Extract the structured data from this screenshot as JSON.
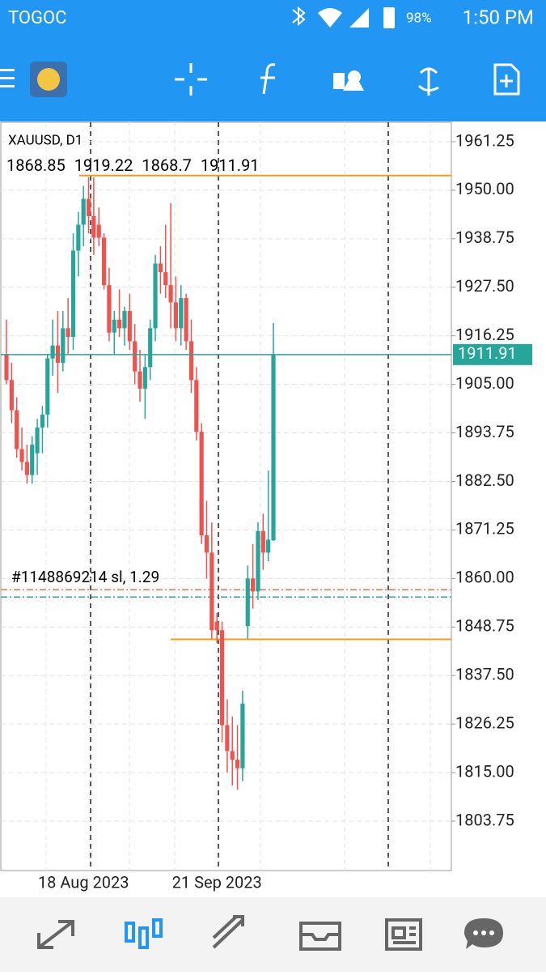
{
  "status_bar": {
    "carrier": "TOGOC",
    "battery": "98%",
    "time": "1:50 PM"
  },
  "chart_data": {
    "type": "candlestick",
    "title": "XAUUSD, D1",
    "categories": [
      null,
      null,
      null,
      null,
      null,
      null,
      null,
      null,
      null,
      null,
      null,
      null,
      null,
      null,
      null,
      "18 Aug 2023",
      null,
      null,
      null,
      null,
      null,
      null,
      null,
      null,
      null,
      null,
      null,
      null,
      null,
      null,
      null,
      null,
      null,
      null,
      null,
      null,
      null,
      null,
      null,
      null,
      null,
      "21 Sep 2023",
      null,
      null,
      null,
      null,
      null,
      null,
      null,
      null,
      null,
      null,
      null
    ],
    "open": [
      1912,
      1906,
      1899,
      1890,
      1887,
      1884,
      1889,
      1895,
      1898,
      1911,
      1914,
      1910,
      1918,
      1916,
      1936,
      1942,
      1948,
      1944,
      1942,
      1939,
      1928,
      1917,
      1920,
      1918,
      1922,
      1915,
      1908,
      1904,
      1909,
      1918,
      1933,
      1931,
      1928,
      1924,
      1918,
      1925,
      1915,
      1906,
      1894,
      1870,
      1866,
      1850,
      1848,
      1826,
      1820,
      1818,
      1816,
      1849,
      1860,
      1857,
      1871,
      1866,
      1868.85
    ],
    "high": [
      1920,
      1910,
      1902,
      1895,
      1891,
      1893,
      1897,
      1900,
      1912,
      1920,
      1922,
      1922,
      1925,
      1940,
      1945,
      1951,
      1953,
      1953,
      1946,
      1940,
      1932,
      1922,
      1927,
      1923,
      1926,
      1919,
      1913,
      1912,
      1920,
      1935,
      1937,
      1942,
      1947,
      1930,
      1928,
      1926,
      1920,
      1909,
      1896,
      1878,
      1873,
      1852,
      1850,
      1832,
      1828,
      1826,
      1834,
      1863,
      1868,
      1873,
      1875,
      1885,
      1919.22
    ],
    "low": [
      1905,
      1896,
      1888,
      1885,
      1882,
      1882,
      1884,
      1889,
      1895,
      1907,
      1903,
      1908,
      1912,
      1913,
      1930,
      1937,
      1940,
      1935,
      1937,
      1927,
      1915,
      1912,
      1916,
      1914,
      1913,
      1905,
      1901,
      1897,
      1906,
      1915,
      1926,
      1925,
      1918,
      1915,
      1914,
      1913,
      1903,
      1892,
      1868,
      1860,
      1846,
      1845,
      1822,
      1815,
      1812,
      1811,
      1813,
      1846,
      1853,
      1855,
      1862,
      1864,
      1868.7
    ],
    "close": [
      1906,
      1899,
      1890,
      1887,
      1884,
      1891,
      1895,
      1898,
      1911,
      1914,
      1910,
      1918,
      1916,
      1936,
      1942,
      1948,
      1944,
      1939,
      1939,
      1928,
      1917,
      1920,
      1918,
      1922,
      1915,
      1908,
      1904,
      1909,
      1918,
      1933,
      1931,
      1928,
      1924,
      1918,
      1925,
      1915,
      1906,
      1894,
      1870,
      1866,
      1848,
      1848,
      1826,
      1820,
      1818,
      1816,
      1831,
      1860,
      1857,
      1871,
      1866,
      1869,
      1911.91
    ],
    "up_color": "#26a69a",
    "down_color": "#ef5350",
    "ylim": [
      1792.3,
      1965.75
    ],
    "yticks": [
      1961.25,
      {
        "value": 1950,
        "label": "1950.00"
      },
      1938.75,
      {
        "value": 1927.5,
        "label": "1927.50"
      },
      1916.25,
      {
        "value": 1905,
        "label": "1905.00"
      },
      1893.75,
      {
        "value": 1882.5,
        "label": "1882.50"
      },
      1871.25,
      {
        "value": 1860,
        "label": "1860.00"
      },
      1848.75,
      {
        "value": 1837.5,
        "label": "1837.50"
      },
      1826.25,
      {
        "value": 1815,
        "label": "1815.00"
      },
      1803.75
    ],
    "grid": true,
    "last_price": 1911.91,
    "trend_lines": [
      1953.4,
      1845.9
    ],
    "order_label": "#1148869214 sl, 1.29",
    "order_lines": [
      1857.4,
      1855.7
    ]
  }
}
